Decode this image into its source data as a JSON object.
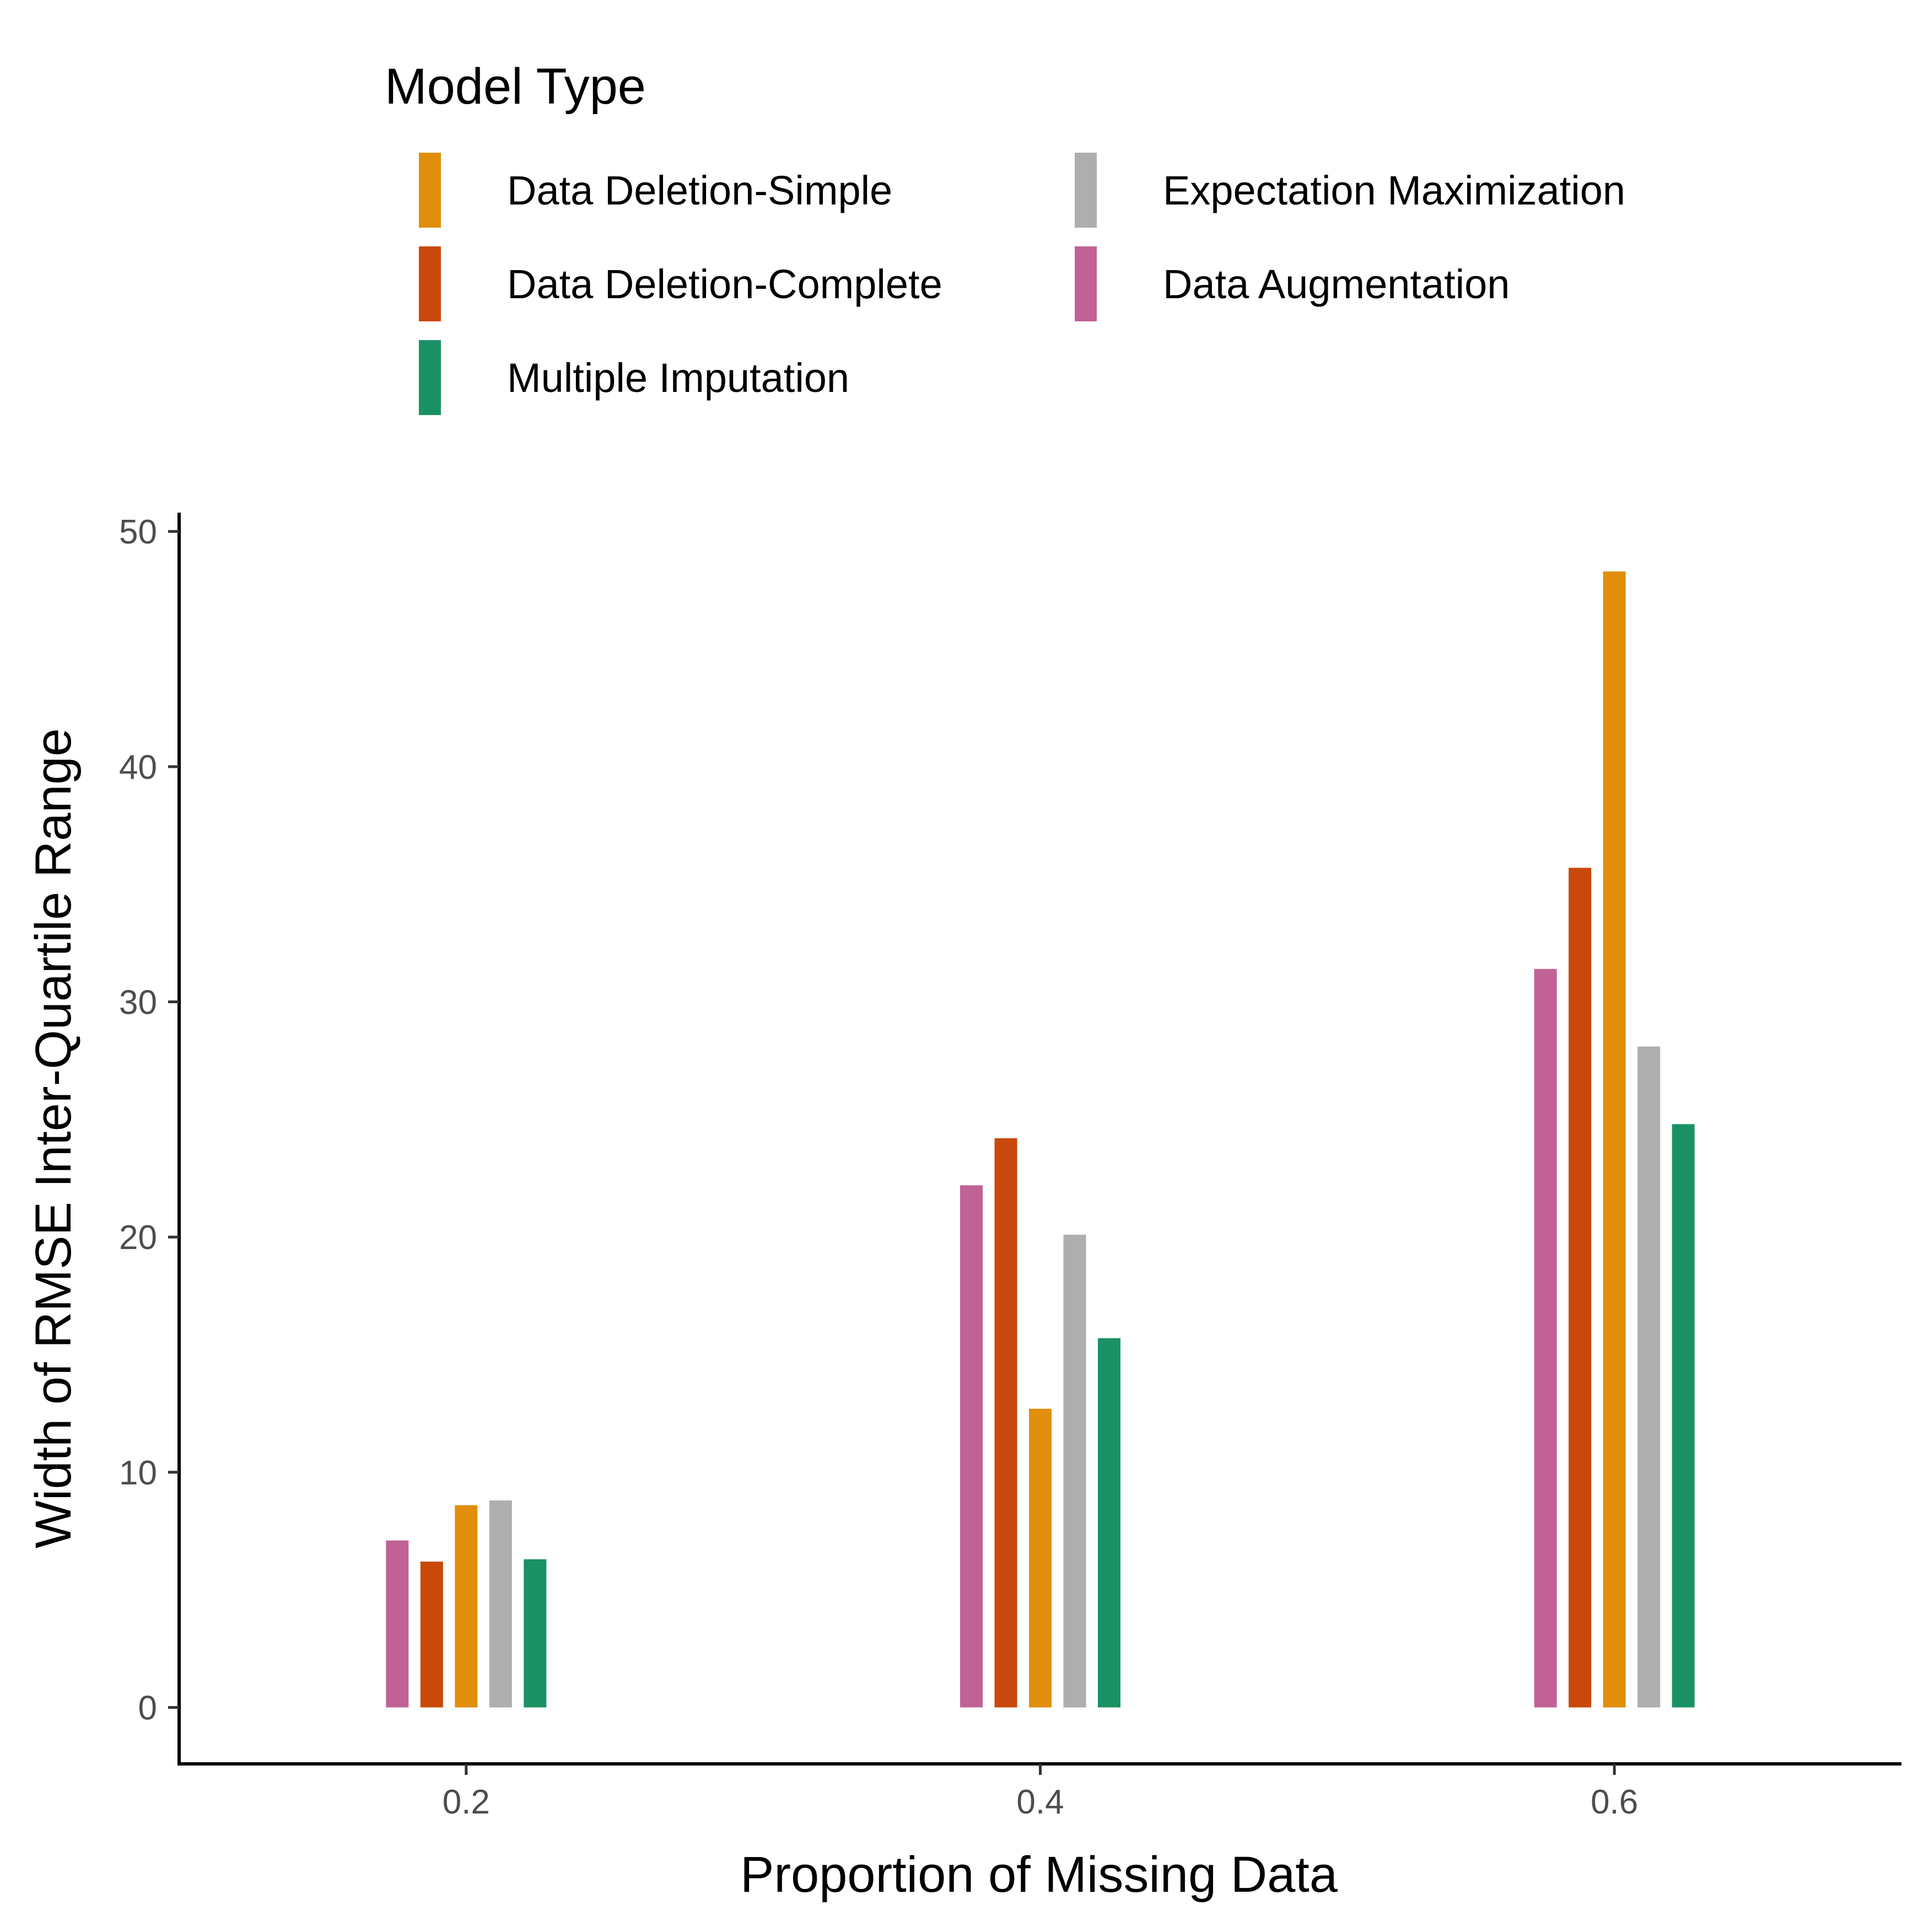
{
  "chart_data": {
    "type": "bar",
    "xlabel": "Proportion of Missing Data",
    "ylabel": "Width of RMSE Inter-Quartile Range",
    "x_ticks": [
      "0.2",
      "0.4",
      "0.6"
    ],
    "categories": [
      0.2,
      0.4,
      0.6
    ],
    "xlim": [
      0.1,
      0.7
    ],
    "ylim": [
      -2.4,
      50.8
    ],
    "y_ticks": [
      0,
      10,
      20,
      30,
      40,
      50
    ],
    "y_tick_labels": [
      "0",
      "10",
      "20",
      "30",
      "40",
      "50"
    ],
    "grid": false,
    "legend": {
      "title": "Model Type",
      "position": "top",
      "entries": [
        {
          "label": "Data Deletion-Simple",
          "color": "#E08E0B"
        },
        {
          "label": "Data Deletion-Complete",
          "color": "#C9490A"
        },
        {
          "label": "Multiple Imputation",
          "color": "#1A9164"
        },
        {
          "label": "Expectation Maximization",
          "color": "#AEAEAE"
        },
        {
          "label": "Data Augmentation",
          "color": "#C16296"
        }
      ]
    },
    "series": [
      {
        "name": "Data Augmentation",
        "color": "#C16296",
        "values": [
          7.1,
          22.2,
          31.4
        ]
      },
      {
        "name": "Data Deletion-Complete",
        "color": "#C9490A",
        "values": [
          6.2,
          24.2,
          35.7
        ]
      },
      {
        "name": "Data Deletion-Simple",
        "color": "#E08E0B",
        "values": [
          8.6,
          12.7,
          48.3
        ]
      },
      {
        "name": "Expectation Maximization",
        "color": "#AEAEAE",
        "values": [
          8.8,
          20.1,
          28.1
        ]
      },
      {
        "name": "Multiple Imputation",
        "color": "#1A9164",
        "values": [
          6.3,
          15.7,
          24.8
        ]
      }
    ]
  }
}
